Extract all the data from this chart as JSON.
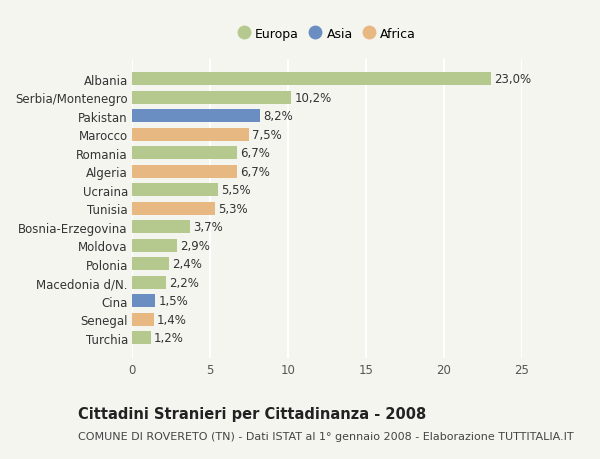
{
  "labels": [
    "Turchia",
    "Senegal",
    "Cina",
    "Macedonia d/N.",
    "Polonia",
    "Moldova",
    "Bosnia-Erzegovina",
    "Tunisia",
    "Ucraina",
    "Algeria",
    "Romania",
    "Marocco",
    "Pakistan",
    "Serbia/Montenegro",
    "Albania"
  ],
  "values": [
    1.2,
    1.4,
    1.5,
    2.2,
    2.4,
    2.9,
    3.7,
    5.3,
    5.5,
    6.7,
    6.7,
    7.5,
    8.2,
    10.2,
    23.0
  ],
  "value_labels": [
    "1,2%",
    "1,4%",
    "1,5%",
    "2,2%",
    "2,4%",
    "2,9%",
    "3,7%",
    "5,3%",
    "5,5%",
    "6,7%",
    "6,7%",
    "7,5%",
    "8,2%",
    "10,2%",
    "23,0%"
  ],
  "continents": [
    "Europa",
    "Africa",
    "Asia",
    "Europa",
    "Europa",
    "Europa",
    "Europa",
    "Africa",
    "Europa",
    "Africa",
    "Europa",
    "Africa",
    "Asia",
    "Europa",
    "Europa"
  ],
  "continent_colors": {
    "Europa": "#b5c98e",
    "Asia": "#6b8ec2",
    "Africa": "#e8b882"
  },
  "legend_items": [
    "Europa",
    "Asia",
    "Africa"
  ],
  "legend_colors": [
    "#b5c98e",
    "#6b8ec2",
    "#e8b882"
  ],
  "xlim": [
    0,
    25
  ],
  "xticks": [
    0,
    5,
    10,
    15,
    20,
    25
  ],
  "title": "Cittadini Stranieri per Cittadinanza - 2008",
  "subtitle": "COMUNE DI ROVERETO (TN) - Dati ISTAT al 1° gennaio 2008 - Elaborazione TUTTITALIA.IT",
  "background_color": "#f5f5f0",
  "bar_height": 0.7,
  "grid_color": "#ffffff",
  "label_fontsize": 8.5,
  "value_fontsize": 8.5,
  "title_fontsize": 10.5,
  "subtitle_fontsize": 8.0
}
